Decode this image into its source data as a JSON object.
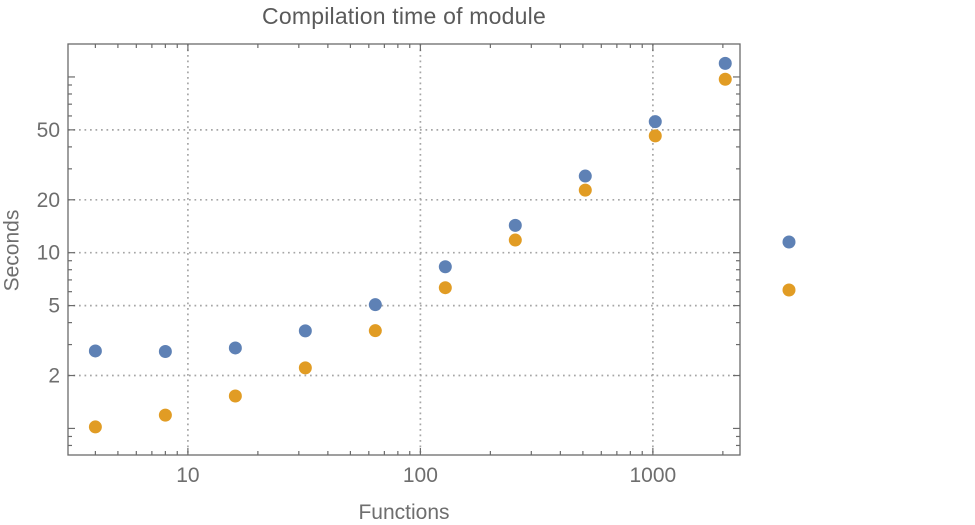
{
  "chart_data": {
    "type": "scatter",
    "title": "Compilation time of module",
    "xlabel": "Functions",
    "ylabel": "Seconds",
    "xscale": "log",
    "yscale": "log",
    "xlim": [
      3.05,
      2370
    ],
    "ylim": [
      0.706,
      154
    ],
    "grid": true,
    "x_tick_labels": [
      "10",
      "100",
      "1000"
    ],
    "y_tick_labels": [
      "2",
      "5",
      "10",
      "20",
      "50"
    ],
    "x_gridlines": [
      10,
      100,
      1000
    ],
    "y_gridlines": [
      2,
      5,
      10,
      20,
      50
    ],
    "legend_position": "right-outside",
    "series": [
      {
        "name": "series-1-blue",
        "color": "#5E81B5",
        "x": [
          4,
          8,
          16,
          32,
          64,
          128,
          256,
          512,
          1024,
          2048
        ],
        "y": [
          2.76,
          2.74,
          2.87,
          3.59,
          5.06,
          8.32,
          14.3,
          27.3,
          55.7,
          119.5
        ]
      },
      {
        "name": "series-2-orange",
        "color": "#E19C24",
        "x": [
          4,
          8,
          16,
          32,
          64,
          128,
          256,
          512,
          1024,
          2048
        ],
        "y": [
          1.02,
          1.19,
          1.53,
          2.21,
          3.6,
          6.32,
          11.8,
          22.7,
          46.2,
          97.0
        ]
      }
    ],
    "legend_markers": [
      {
        "color": "#5E81B5",
        "label": ""
      },
      {
        "color": "#E19C24",
        "label": ""
      }
    ]
  },
  "style": {
    "background": "#FFFFFF",
    "frame_color": "#6B6B6B",
    "grid_color": "#A6A6A6",
    "title_color": "#5A5A5A",
    "label_color": "#6E6E6E",
    "tick_label_color": "#6E6E6E"
  }
}
